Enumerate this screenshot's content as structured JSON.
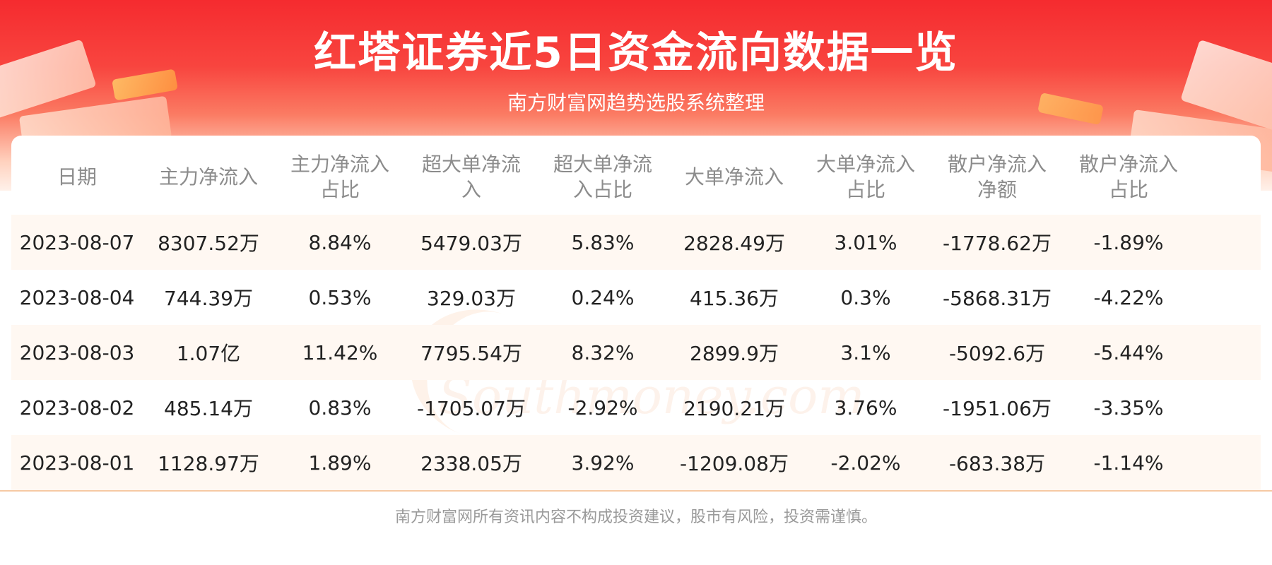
{
  "title": "红塔证券近5日资金流向数据一览",
  "subtitle": "南方财富网趋势选股系统整理",
  "watermark": {
    "cn": "南方财富网",
    "en": "Southmoney.com"
  },
  "table": {
    "headers": [
      {
        "line1": "日期",
        "line2": ""
      },
      {
        "line1": "主力净流入",
        "line2": ""
      },
      {
        "line1": "主力净流入",
        "line2": "占比"
      },
      {
        "line1": "超大单净流",
        "line2": "入"
      },
      {
        "line1": "超大单净流",
        "line2": "入占比"
      },
      {
        "line1": "大单净流入",
        "line2": ""
      },
      {
        "line1": "大单净流入",
        "line2": "占比"
      },
      {
        "line1": "散户净流入",
        "line2": "净额"
      },
      {
        "line1": "散户净流入",
        "line2": "占比"
      }
    ],
    "rows": [
      [
        "2023-08-07",
        "8307.52万",
        "8.84%",
        "5479.03万",
        "5.83%",
        "2828.49万",
        "3.01%",
        "-1778.62万",
        "-1.89%"
      ],
      [
        "2023-08-04",
        "744.39万",
        "0.53%",
        "329.03万",
        "0.24%",
        "415.36万",
        "0.3%",
        "-5868.31万",
        "-4.22%"
      ],
      [
        "2023-08-03",
        "1.07亿",
        "11.42%",
        "7795.54万",
        "8.32%",
        "2899.9万",
        "3.1%",
        "-5092.6万",
        "-5.44%"
      ],
      [
        "2023-08-02",
        "485.14万",
        "0.83%",
        "-1705.07万",
        "-2.92%",
        "2190.21万",
        "3.76%",
        "-1951.06万",
        "-3.35%"
      ],
      [
        "2023-08-01",
        "1128.97万",
        "1.89%",
        "2338.05万",
        "3.92%",
        "-1209.08万",
        "-2.02%",
        "-683.38万",
        "-1.14%"
      ]
    ]
  },
  "footer": "南方财富网所有资讯内容不构成投资建议，股市有风险，投资需谨慎。",
  "colors": {
    "banner": "#f52b2f",
    "row_alt": "#fff8f2",
    "header_text": "#8c8c8c"
  }
}
